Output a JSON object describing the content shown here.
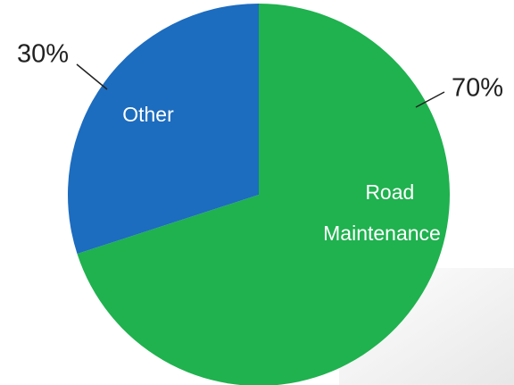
{
  "chart_data": {
    "type": "pie",
    "categories": [
      "Road Maintenance",
      "Other"
    ],
    "values": [
      70,
      30
    ],
    "value_labels": [
      "70%",
      "30%"
    ],
    "colors": [
      "#1fb24f",
      "#1c6cbf"
    ]
  }
}
